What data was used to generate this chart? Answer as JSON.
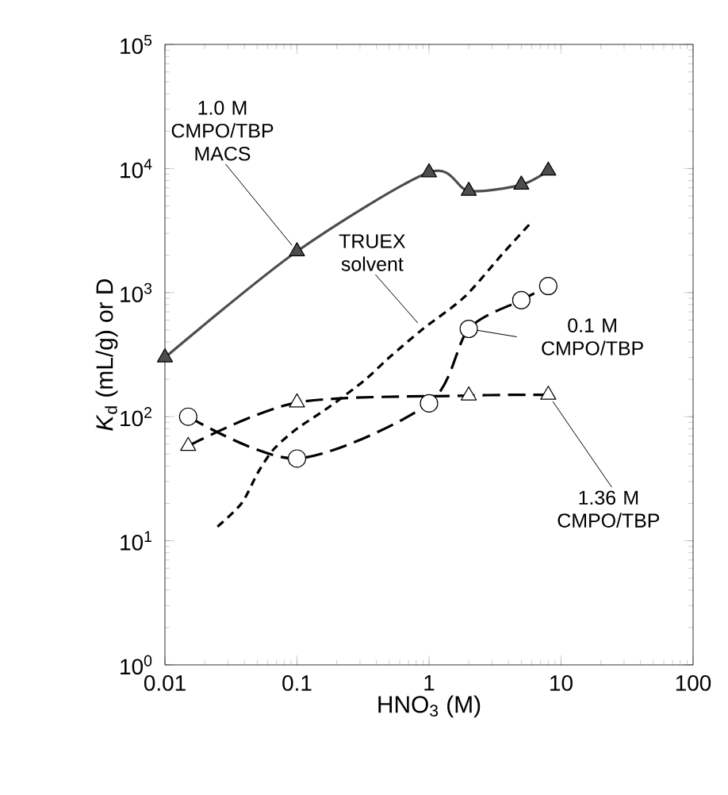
{
  "chart_data": {
    "type": "line",
    "xlabel": "HNO$_{3}$ (M)",
    "ylabel": "*K*$_{d}$ (mL/g) or D",
    "log": "xy",
    "xlim": [
      0.01,
      100
    ],
    "ylim": [
      1,
      100000
    ],
    "xticks": [
      0.01,
      0.1,
      1,
      10,
      100
    ],
    "yticks": [
      {
        "value": 1,
        "label": "10$^{0}$"
      },
      {
        "value": 10,
        "label": "10$^{1}$"
      },
      {
        "value": 100,
        "label": "10$^{2}$"
      },
      {
        "value": 1000,
        "label": "10$^{3}$"
      },
      {
        "value": 10000,
        "label": "10$^{4}$"
      },
      {
        "value": 100000,
        "label": "10$^{5}$"
      }
    ],
    "grid": false,
    "series": [
      {
        "color": "#4d4d4d",
        "marker": "triangle",
        "line_style": "solid",
        "x": [
          0.01,
          0.1,
          1,
          2,
          5,
          8
        ],
        "values": [
          300,
          2150,
          9300,
          6600,
          7400,
          9600
        ]
      },
      {
        "color": "#000000",
        "marker": "circle",
        "line_style": "dashed",
        "x": [
          0.015,
          0.1,
          1,
          2,
          5,
          8
        ],
        "values": [
          100,
          46,
          128,
          510,
          870,
          1130
        ]
      },
      {
        "color": "#000000",
        "marker": "triangle",
        "line_style": "dashed",
        "x": [
          0.015,
          0.1,
          2,
          8
        ],
        "values": [
          58,
          130,
          148,
          150
        ]
      },
      {
        "color": "#000000",
        "marker": "none",
        "line_style": "dotted",
        "x": [
          0.025,
          0.038,
          0.051,
          0.067,
          0.1,
          0.17,
          0.32,
          0.5,
          0.9,
          1.85,
          3.6,
          5.9
        ],
        "values": [
          13,
          20,
          36,
          55,
          80,
          117,
          194,
          300,
          510,
          920,
          2050,
          3650
        ]
      }
    ],
    "annotations": [
      {
        "text": "1.0 M CMPO/TBP MACS",
        "x": 0.1,
        "y": 2150
      },
      {
        "text": "TRUEX solvent",
        "x": 0.9,
        "y": 510
      },
      {
        "text": "0.1 M CMPO/TBP",
        "x": 2,
        "y": 510
      },
      {
        "text": "1.36 M CMPO/TBP",
        "x": 8,
        "y": 150
      }
    ]
  }
}
